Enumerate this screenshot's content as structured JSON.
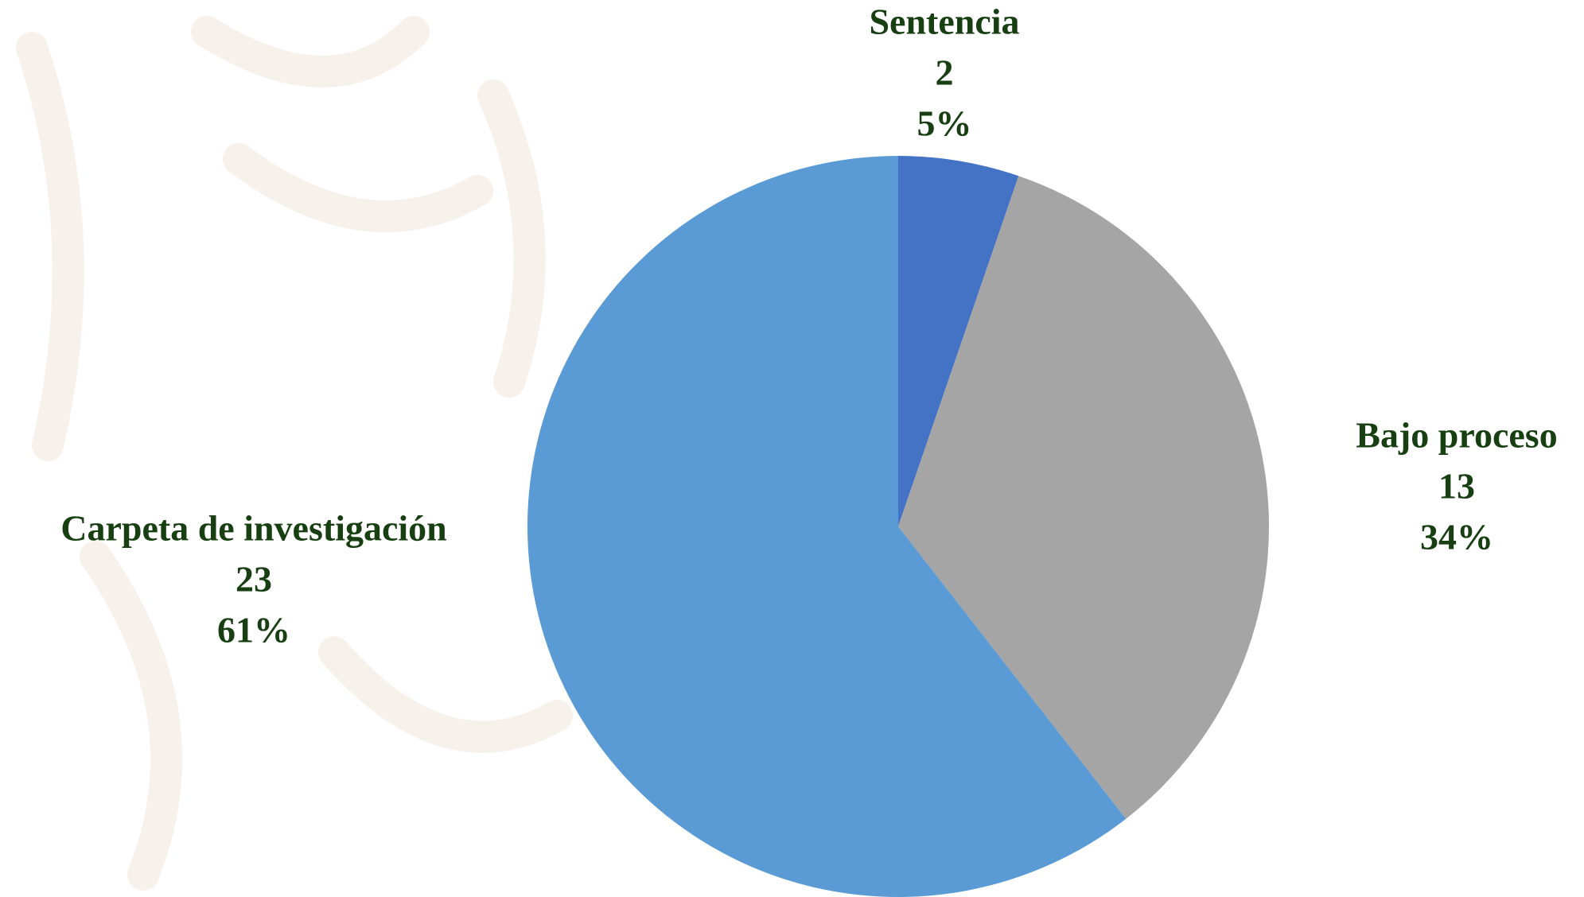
{
  "chart_data": {
    "type": "pie",
    "categories": [
      "Sentencia",
      "Bajo proceso",
      "Carpeta de investigación"
    ],
    "values": [
      2,
      13,
      23
    ],
    "percentages": [
      5,
      34,
      61
    ],
    "percentage_labels": [
      "5%",
      "34%",
      "61%"
    ],
    "colors": [
      "#4472c4",
      "#a5a5a5",
      "#5b9bd5"
    ]
  }
}
